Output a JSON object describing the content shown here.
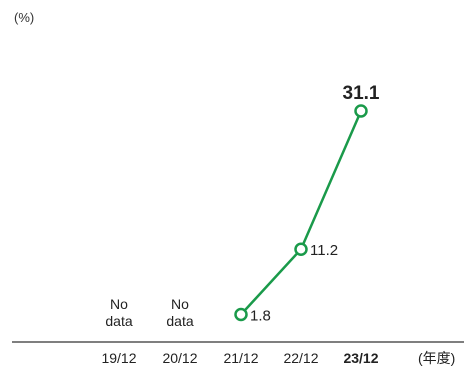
{
  "chart_data": {
    "type": "line",
    "title": "",
    "ylabel": "(%)",
    "xlabel": "(年度)",
    "categories": [
      "19/12",
      "20/12",
      "21/12",
      "22/12",
      "23/12"
    ],
    "highlight_category": "23/12",
    "series": [
      {
        "values": [
          null,
          null,
          1.8,
          11.2,
          31.1
        ],
        "data_labels": [
          "",
          "",
          "1.8",
          "11.2",
          "31.1"
        ],
        "color": "#1a9a4a"
      }
    ],
    "no_data": [
      {
        "category": "19/12",
        "line1": "No",
        "line2": "data"
      },
      {
        "category": "20/12",
        "line1": "No",
        "line2": "data"
      }
    ],
    "ylim": [
      0,
      33
    ],
    "grid": false,
    "legend": "none"
  },
  "colors": {
    "line": "#1a9a4a",
    "axis": "#333333",
    "marker_fill": "#ffffff"
  }
}
